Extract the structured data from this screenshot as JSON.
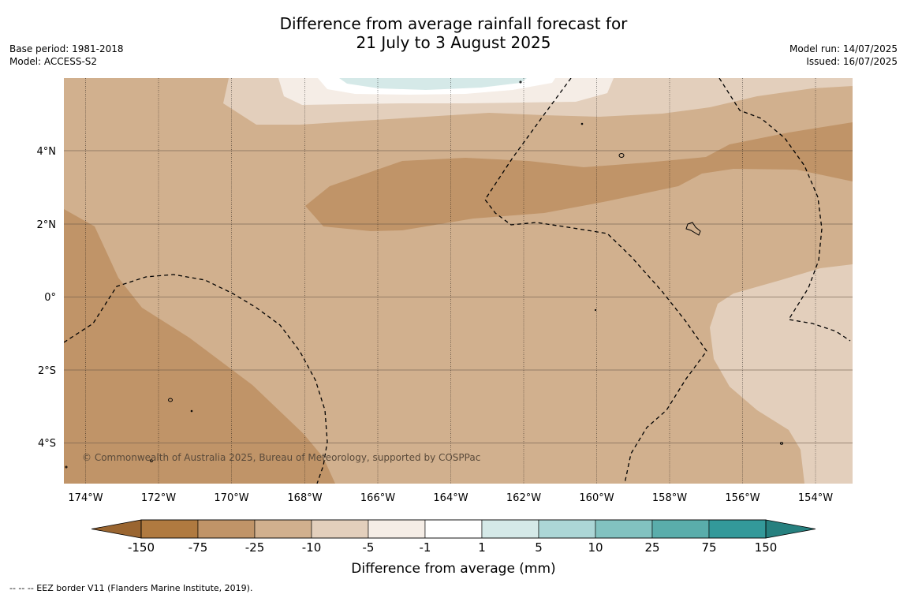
{
  "title_line1": "Difference from average rainfall forecast for",
  "title_line2": "21 July to 3 August 2025",
  "base_period": "Base period: 1981-2018",
  "model": "Model: ACCESS-S2",
  "model_run": "Model run: 14/07/2025",
  "issued": "Issued: 16/07/2025",
  "copyright": "© Commonwealth of Australia 2025, Bureau of Meteorology, supported by COSPPac",
  "footer": "--  --  -- EEZ border V11 (Flanders Marine Institute, 2019).",
  "lat_labels": [
    "4°N",
    "2°N",
    "0°",
    "2°S",
    "4°S"
  ],
  "lon_labels": [
    "174°W",
    "172°W",
    "170°W",
    "168°W",
    "166°W",
    "164°W",
    "162°W",
    "160°W",
    "158°W",
    "156°W",
    "154°W"
  ],
  "colorbar": {
    "title": "Difference from average (mm)",
    "tick_labels": [
      "-150",
      "-75",
      "-25",
      "-10",
      "-5",
      "-1",
      "1",
      "5",
      "10",
      "25",
      "75",
      "150"
    ],
    "colors": [
      "#b07a40",
      "#c09468",
      "#d1b08e",
      "#e3cfbc",
      "#f5ede6",
      "#ffffff",
      "#d5e9e8",
      "#acd6d6",
      "#82c2c0",
      "#5aadab",
      "#33999a"
    ]
  }
}
